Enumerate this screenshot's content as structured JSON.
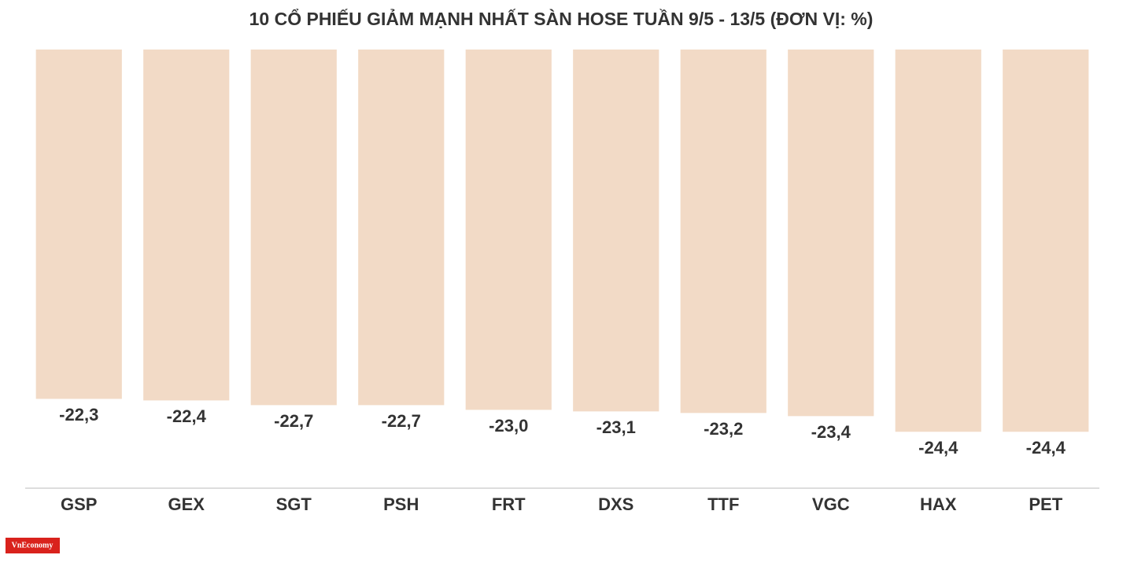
{
  "chart_data": {
    "type": "bar",
    "title": "10 CỔ PHIẾU GIẢM MẠNH NHẤT SÀN HOSE TUẦN 9/5 - 13/5 (ĐƠN VỊ: %)",
    "categories": [
      "GSP",
      "GEX",
      "SGT",
      "PSH",
      "FRT",
      "DXS",
      "TTF",
      "VGC",
      "HAX",
      "PET"
    ],
    "values": [
      -22.3,
      -22.4,
      -22.7,
      -22.7,
      -23.0,
      -23.1,
      -23.2,
      -23.4,
      -24.4,
      -24.4
    ],
    "value_labels": [
      "-22,3",
      "-22,4",
      "-22,7",
      "-22,7",
      "-23,0",
      "-23,1",
      "-23,2",
      "-23,4",
      "-24,4",
      "-24,4"
    ],
    "color": "#f2dac6",
    "ylim": [
      -28,
      0
    ],
    "logo": "VnEconomy"
  }
}
